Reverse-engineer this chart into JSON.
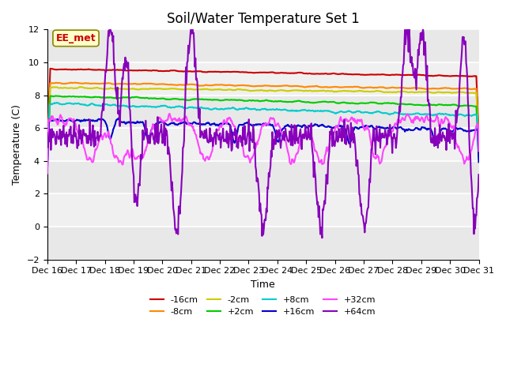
{
  "title": "Soil/Water Temperature Set 1",
  "xlabel": "Time",
  "ylabel": "Temperature (C)",
  "ylim": [
    -2,
    12
  ],
  "yticks": [
    -2,
    0,
    2,
    4,
    6,
    8,
    10,
    12
  ],
  "xtick_labels": [
    "Dec 16",
    "Dec 17",
    "Dec 18",
    "Dec 19",
    "Dec 20",
    "Dec 21",
    "Dec 22",
    "Dec 23",
    "Dec 24",
    "Dec 25",
    "Dec 26",
    "Dec 27",
    "Dec 28",
    "Dec 29",
    "Dec 30",
    "Dec 31"
  ],
  "series": {
    "-16cm": {
      "color": "#cc0000",
      "linewidth": 1.5
    },
    "-8cm": {
      "color": "#ff8800",
      "linewidth": 1.5
    },
    "-2cm": {
      "color": "#cccc00",
      "linewidth": 1.5
    },
    "+2cm": {
      "color": "#00cc00",
      "linewidth": 1.5
    },
    "+8cm": {
      "color": "#00cccc",
      "linewidth": 1.5
    },
    "+16cm": {
      "color": "#0000cc",
      "linewidth": 1.5
    },
    "+32cm": {
      "color": "#ff44ff",
      "linewidth": 1.5
    },
    "+64cm": {
      "color": "#8800bb",
      "linewidth": 1.5
    }
  },
  "annotation_text": "EE_met",
  "annotation_color": "#cc0000",
  "annotation_bg": "#ffffcc",
  "background_color": "#ffffff",
  "plot_bg_color": "#f0f0f0",
  "grid_color": "#ffffff",
  "title_fontsize": 12,
  "label_fontsize": 9,
  "tick_fontsize": 8
}
